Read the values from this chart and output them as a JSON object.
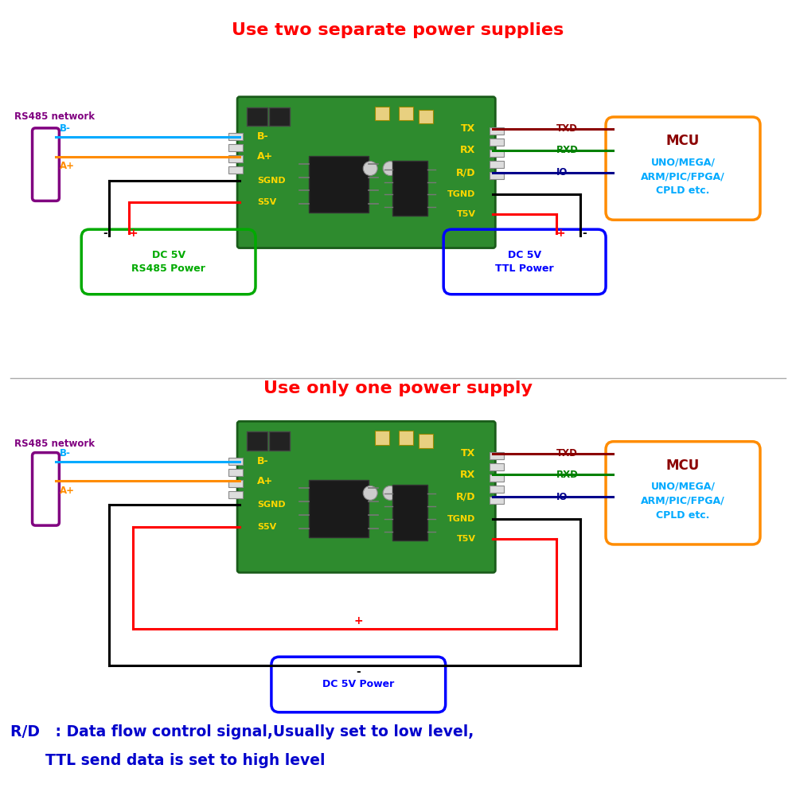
{
  "title1": "Use two separate power supplies",
  "title2": "Use only one power supply",
  "footer_line1": "R/D   : Data flow control signal,Usually set to low level,",
  "footer_line2": "TTL send data is set to high level",
  "title_color": "#FF0000",
  "footer_color": "#0000CC",
  "bg_color": "#FFFFFF",
  "rs485_label": "RS485 network",
  "rs485_color": "#800080",
  "mcu_label": "MCU",
  "mcu_color": "#8B0000",
  "mcu_sub_label": "UNO/MEGA/\nARM/PIC/FPGA/\nCPLD etc.",
  "mcu_sub_color": "#00AAFF",
  "mcu_box_color": "#FF8C00",
  "rs485_power_label": "DC 5V\nRS485 Power",
  "rs485_power_color": "#00AA00",
  "ttl_power_label": "DC 5V\nTTL Power",
  "ttl_power_color": "#0000FF",
  "dc_power_label": "DC 5V Power",
  "dc_power_color": "#0000FF",
  "pin_color": "#FFD700",
  "txd_color": "#8B0000",
  "rxd_color": "#008000",
  "io_color": "#00008B",
  "bm_color": "#00AAFF",
  "ap_color": "#FF8C00",
  "black_wire": "#000000",
  "red_wire": "#FF0000",
  "board_green": "#2E8B2E",
  "board_dark_green": "#1A5C1A"
}
